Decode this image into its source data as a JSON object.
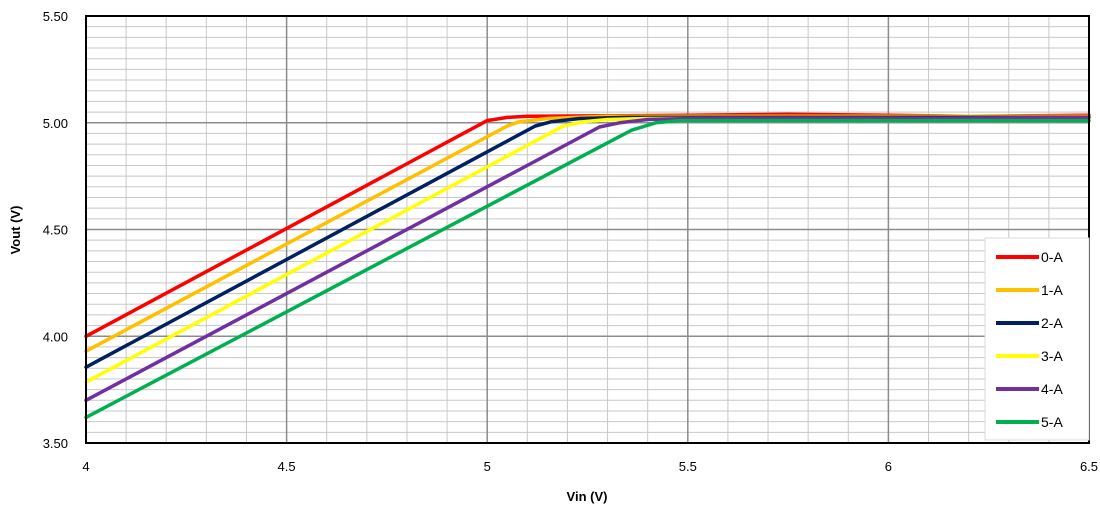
{
  "chart_data": {
    "type": "line",
    "title": "",
    "xlabel": "Vin (V)",
    "ylabel": "Vout (V)",
    "xlim": [
      4,
      6.5
    ],
    "ylim": [
      3.5,
      5.5
    ],
    "x_ticks": [
      4,
      4.5,
      5,
      5.5,
      6,
      6.5
    ],
    "x_tick_labels": [
      "4",
      "4.5",
      "5",
      "5.5",
      "6",
      "6.5"
    ],
    "y_ticks": [
      3.5,
      4.0,
      4.5,
      5.0,
      5.5
    ],
    "y_tick_labels": [
      "3.50",
      "4.00",
      "4.50",
      "5.00",
      "5.50"
    ],
    "x_minor_step": 0.1,
    "y_minor_step": 0.05,
    "grid": true,
    "legend_position": "bottom-right",
    "series": [
      {
        "name": "0-A",
        "color": "#ff0000",
        "points": [
          [
            4.0,
            4.0
          ],
          [
            4.98,
            4.99
          ],
          [
            5.0,
            5.01
          ],
          [
            5.05,
            5.025
          ],
          [
            5.1,
            5.03
          ],
          [
            5.5,
            5.035
          ],
          [
            5.75,
            5.04
          ],
          [
            6.0,
            5.035
          ],
          [
            6.2,
            5.03
          ],
          [
            6.5,
            5.035
          ]
        ]
      },
      {
        "name": "1-A",
        "color": "#ffc000",
        "points": [
          [
            4.0,
            3.93
          ],
          [
            5.05,
            4.985
          ],
          [
            5.08,
            5.005
          ],
          [
            5.15,
            5.02
          ],
          [
            5.3,
            5.03
          ],
          [
            6.0,
            5.03
          ],
          [
            6.5,
            5.03
          ]
        ]
      },
      {
        "name": "2-A",
        "color": "#002060",
        "points": [
          [
            4.0,
            3.855
          ],
          [
            5.12,
            4.985
          ],
          [
            5.16,
            5.005
          ],
          [
            5.23,
            5.02
          ],
          [
            5.35,
            5.025
          ],
          [
            6.0,
            5.025
          ],
          [
            6.5,
            5.025
          ]
        ]
      },
      {
        "name": "3-A",
        "color": "#ffff00",
        "points": [
          [
            4.0,
            3.785
          ],
          [
            5.19,
            4.985
          ],
          [
            5.24,
            5.005
          ],
          [
            5.3,
            5.015
          ],
          [
            5.4,
            5.02
          ],
          [
            6.0,
            5.02
          ],
          [
            6.5,
            5.02
          ]
        ]
      },
      {
        "name": "4-A",
        "color": "#7030a0",
        "points": [
          [
            4.0,
            3.7
          ],
          [
            5.28,
            4.98
          ],
          [
            5.33,
            5.0
          ],
          [
            5.4,
            5.015
          ],
          [
            5.5,
            5.02
          ],
          [
            6.0,
            5.02
          ],
          [
            6.5,
            5.025
          ]
        ]
      },
      {
        "name": "5-A",
        "color": "#00b050",
        "points": [
          [
            4.0,
            3.62
          ],
          [
            5.36,
            4.965
          ],
          [
            5.42,
            5.0
          ],
          [
            5.48,
            5.01
          ],
          [
            5.6,
            5.01
          ],
          [
            6.0,
            5.01
          ],
          [
            6.5,
            5.01
          ]
        ]
      }
    ]
  }
}
